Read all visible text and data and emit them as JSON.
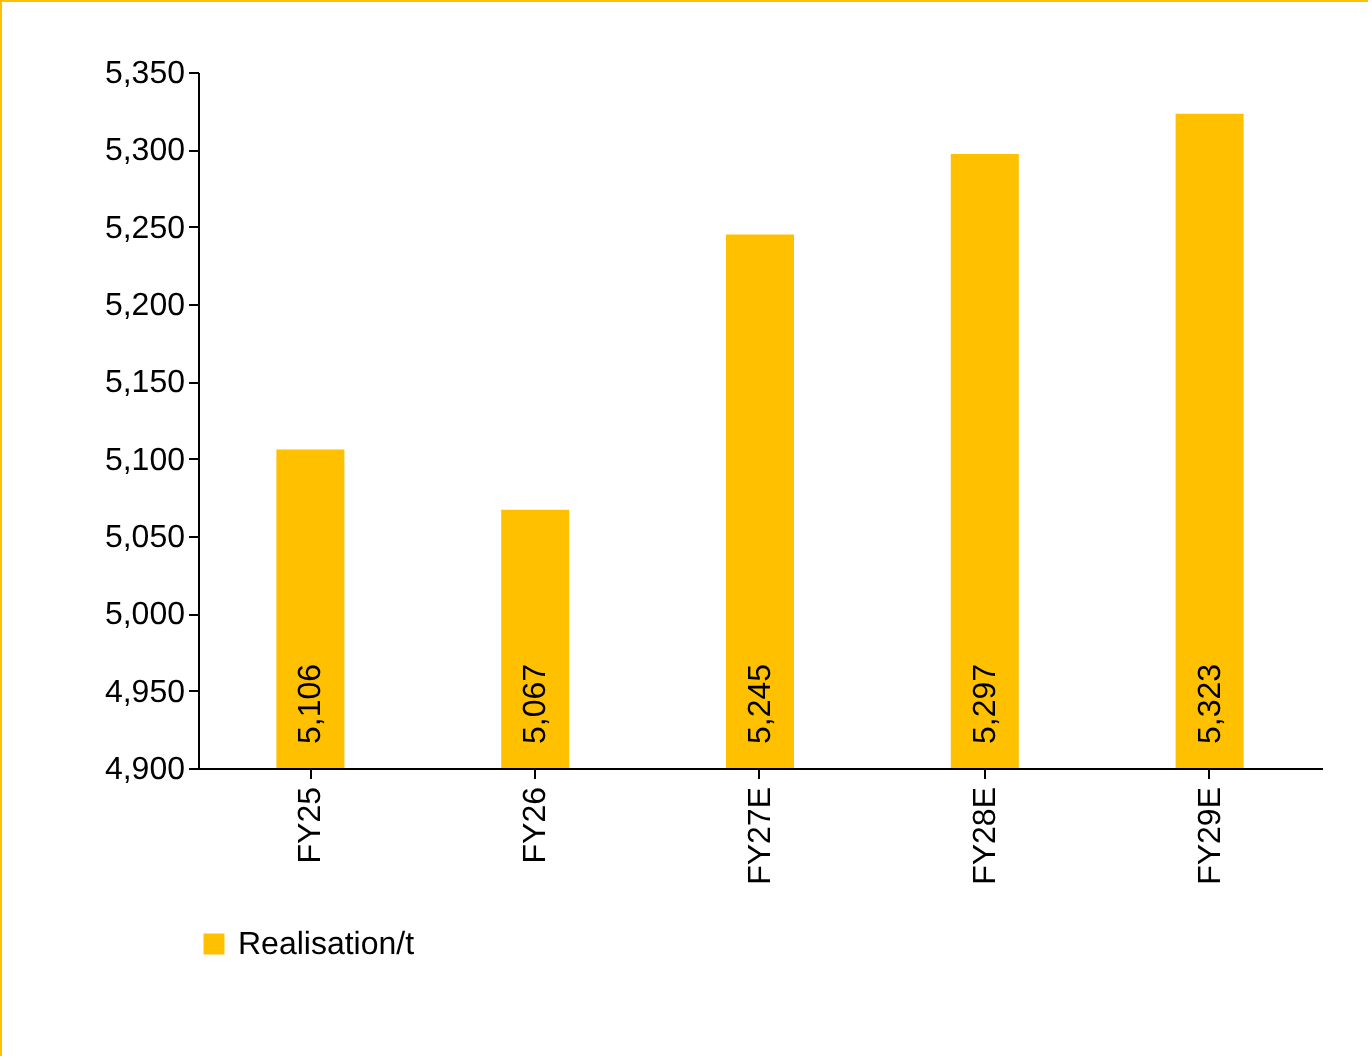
{
  "chart_data": {
    "type": "bar",
    "categories": [
      "FY25",
      "FY26",
      "FY27E",
      "FY28E",
      "FY29E"
    ],
    "series": [
      {
        "name": "Realisation/t",
        "color": "#ffc000",
        "values": [
          5106,
          5067,
          5245,
          5297,
          5323
        ],
        "value_labels": [
          "5,106",
          "5,067",
          "5,245",
          "5,297",
          "5,323"
        ]
      }
    ],
    "ylim": [
      4900,
      5350
    ],
    "yticks": [
      {
        "value": 4900,
        "label": "4,900"
      },
      {
        "value": 4950,
        "label": "4,950"
      },
      {
        "value": 5000,
        "label": "5,000"
      },
      {
        "value": 5050,
        "label": "5,050"
      },
      {
        "value": 5100,
        "label": "5,100"
      },
      {
        "value": 5150,
        "label": "5,150"
      },
      {
        "value": 5200,
        "label": "5,200"
      },
      {
        "value": 5250,
        "label": "5,250"
      },
      {
        "value": 5300,
        "label": "5,300"
      },
      {
        "value": 5350,
        "label": "5,350"
      }
    ],
    "legend": "bottom",
    "grid": false
  }
}
